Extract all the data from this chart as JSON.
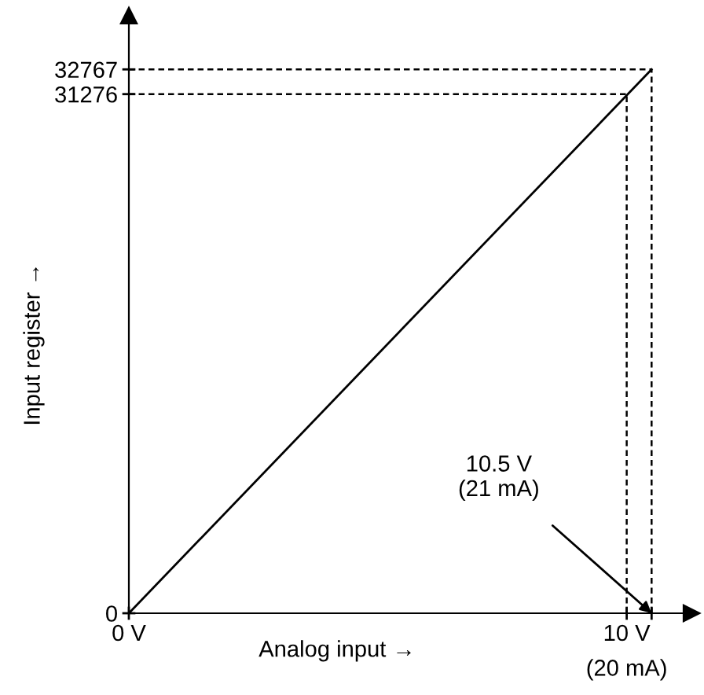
{
  "chart_data": {
    "type": "line",
    "xlabel": "Analog input →",
    "ylabel": "Input register →",
    "series": [
      {
        "x": [
          0,
          10.5
        ],
        "values": [
          0,
          32767
        ],
        "color": "#000000"
      }
    ],
    "xlim": [
      0,
      11.3
    ],
    "ylim": [
      0,
      36000
    ],
    "xticks": [
      {
        "value": 0,
        "label": "0 V"
      },
      {
        "value": 10,
        "label": "10 V"
      },
      {
        "value": 10.5,
        "label": null
      }
    ],
    "yticks": [
      0,
      31276,
      32767
    ],
    "ref_lines": [
      {
        "axis": "y",
        "value": 32767,
        "color": "#000000",
        "line_style": "dashed"
      },
      {
        "axis": "y",
        "value": 31276,
        "color": "#000000",
        "line_style": "dashed"
      },
      {
        "axis": "x",
        "value": 10,
        "color": "#000000",
        "line_style": "dashed"
      },
      {
        "axis": "x",
        "value": 10.5,
        "color": "#000000",
        "line_style": "dashed"
      }
    ],
    "annotations": [
      {
        "text": "10.5 V\n(21 mA)",
        "x": 10.5,
        "y": 0
      },
      {
        "text": "(20 mA)",
        "x": 10,
        "y": 0
      }
    ],
    "grid": false,
    "legend": false,
    "line_style": "solid"
  }
}
